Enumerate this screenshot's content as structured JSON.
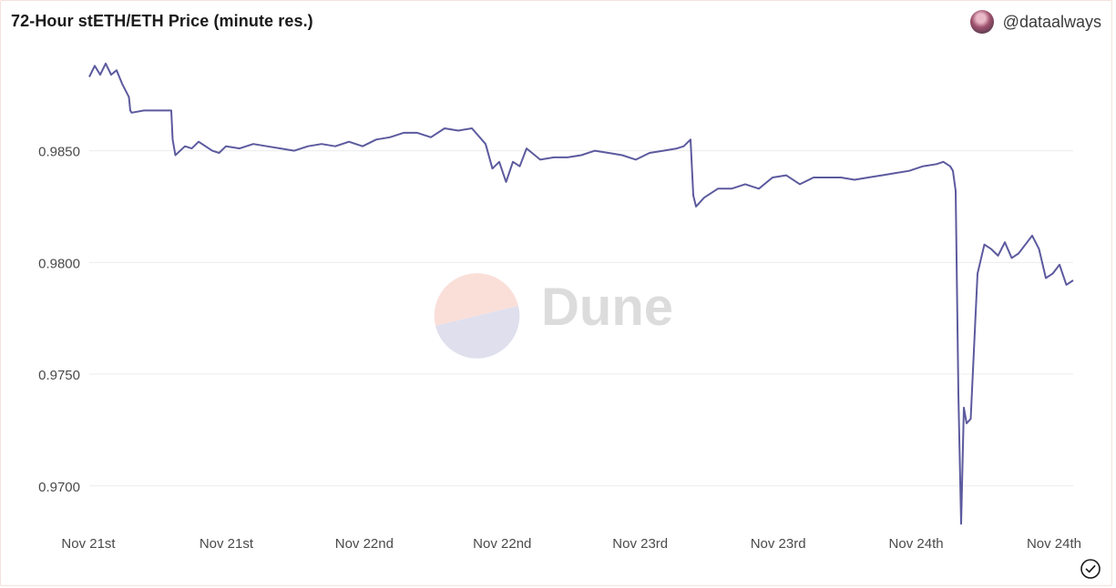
{
  "header": {
    "title": "72-Hour stETH/ETH Price (minute res.)",
    "author_handle": "@dataalways"
  },
  "watermark": {
    "text": "Dune"
  },
  "colors": {
    "line": "#5c5a9e",
    "grid": "#ebebeb",
    "axis_text": "#4a4a4a",
    "watermark_top": "#f9d9d2",
    "watermark_bottom": "#dcdcec",
    "watermark_text": "#dcdcdc"
  },
  "icons": {
    "avatar": "avatar",
    "status": "check-circle-icon"
  },
  "chart_data": {
    "type": "line",
    "title": "72-Hour stETH/ETH Price (minute res.)",
    "xlabel": "",
    "ylabel": "",
    "x_tick_labels": [
      "Nov 21st",
      "Nov 21st",
      "Nov 22nd",
      "Nov 22nd",
      "Nov 23rd",
      "Nov 23rd",
      "Nov 24th",
      "Nov 24th"
    ],
    "x_range_hours": [
      0,
      72
    ],
    "y_tick_labels": [
      "0.9700",
      "0.9750",
      "0.9800",
      "0.9850"
    ],
    "y_ticks": [
      0.97,
      0.975,
      0.98,
      0.985
    ],
    "ylim": [
      0.9682,
      0.9893
    ],
    "grid": true,
    "legend": "none",
    "series": [
      {
        "x": [
          0.0,
          0.4,
          0.8,
          1.2,
          1.6,
          2.0,
          2.4,
          2.9,
          3.0,
          3.1,
          4.0,
          6.0,
          6.1,
          6.3,
          7.0,
          7.5,
          8.0,
          9.0,
          9.5,
          10.0,
          11.0,
          12.0,
          13.0,
          14.0,
          15.0,
          16.0,
          17.0,
          18.0,
          19.0,
          20.0,
          21.0,
          22.0,
          23.0,
          24.0,
          25.0,
          26.0,
          27.0,
          28.0,
          29.0,
          29.5,
          30.0,
          30.5,
          31.0,
          31.5,
          32.0,
          33.0,
          34.0,
          35.0,
          36.0,
          37.0,
          38.0,
          39.0,
          40.0,
          41.0,
          42.0,
          43.0,
          43.5,
          44.0,
          44.2,
          44.4,
          45.0,
          46.0,
          47.0,
          48.0,
          49.0,
          50.0,
          51.0,
          52.0,
          53.0,
          54.0,
          55.0,
          56.0,
          57.0,
          58.0,
          59.0,
          60.0,
          61.0,
          62.0,
          62.5,
          63.0,
          63.2,
          63.4,
          63.6,
          63.8,
          64.0,
          64.2,
          64.5,
          65.0,
          65.5,
          66.0,
          66.5,
          67.0,
          67.5,
          68.0,
          68.5,
          69.0,
          69.5,
          70.0,
          70.5,
          71.0,
          71.5,
          72.0
        ],
        "y": [
          0.9883,
          0.9888,
          0.9884,
          0.9889,
          0.9884,
          0.9886,
          0.988,
          0.9874,
          0.9868,
          0.9867,
          0.9868,
          0.9868,
          0.9855,
          0.9848,
          0.9852,
          0.9851,
          0.9854,
          0.985,
          0.9849,
          0.9852,
          0.9851,
          0.9853,
          0.9852,
          0.9851,
          0.985,
          0.9852,
          0.9853,
          0.9852,
          0.9854,
          0.9852,
          0.9855,
          0.9856,
          0.9858,
          0.9858,
          0.9856,
          0.986,
          0.9859,
          0.986,
          0.9853,
          0.9842,
          0.9845,
          0.9836,
          0.9845,
          0.9843,
          0.9851,
          0.9846,
          0.9847,
          0.9847,
          0.9848,
          0.985,
          0.9849,
          0.9848,
          0.9846,
          0.9849,
          0.985,
          0.9851,
          0.9852,
          0.9855,
          0.983,
          0.9825,
          0.9829,
          0.9833,
          0.9833,
          0.9835,
          0.9833,
          0.9838,
          0.9839,
          0.9835,
          0.9838,
          0.9838,
          0.9838,
          0.9837,
          0.9838,
          0.9839,
          0.984,
          0.9841,
          0.9843,
          0.9844,
          0.9845,
          0.9843,
          0.9841,
          0.9832,
          0.9741,
          0.9683,
          0.9735,
          0.9728,
          0.973,
          0.9795,
          0.9808,
          0.9806,
          0.9803,
          0.9809,
          0.9802,
          0.9804,
          0.9808,
          0.9812,
          0.9806,
          0.9793,
          0.9795,
          0.9799,
          0.979,
          0.9792
        ]
      }
    ]
  }
}
